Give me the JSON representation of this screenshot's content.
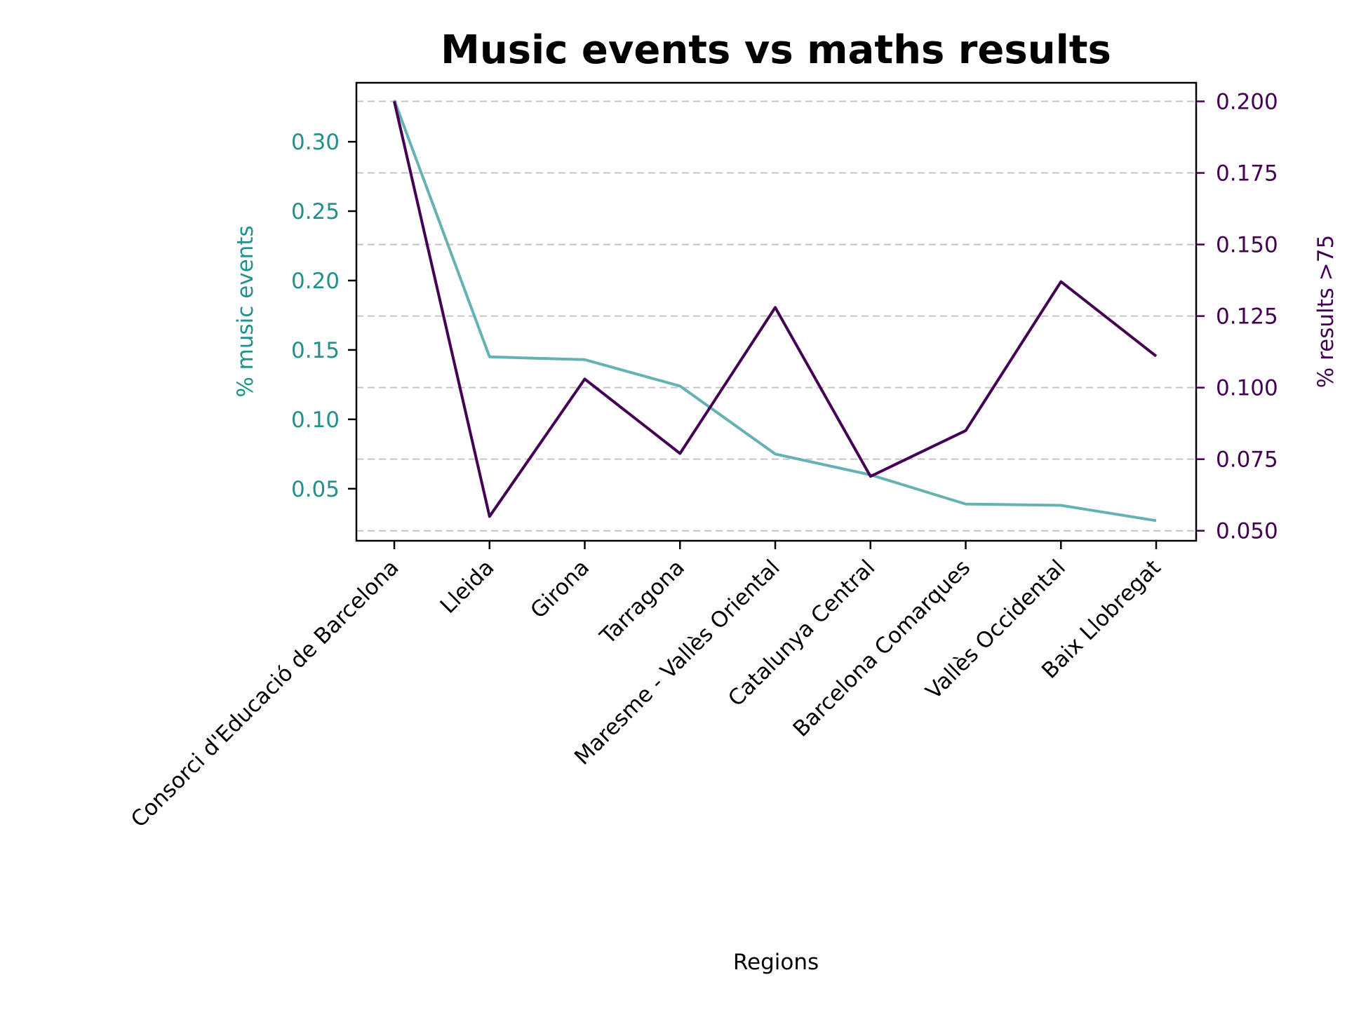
{
  "chart_data": {
    "type": "line",
    "title": "Music events vs maths results",
    "xlabel": "Regions",
    "ylabel_left": "%  music events",
    "ylabel_right": "% results >75",
    "categories": [
      "Consorci d'Educació de Barcelona",
      "Lleida",
      "Girona",
      "Tarragona",
      "Maresme - Vallès Oriental",
      "Catalunya Central",
      "Barcelona Comarques",
      "Vallès Occidental",
      "Baix Llobregat"
    ],
    "series": [
      {
        "axis": "left",
        "color": "#66b2b2",
        "values": [
          0.33,
          0.145,
          0.143,
          0.124,
          0.075,
          0.06,
          0.039,
          0.038,
          0.027
        ]
      },
      {
        "axis": "right",
        "color": "#440154",
        "values": [
          0.2,
          0.055,
          0.103,
          0.077,
          0.128,
          0.069,
          0.085,
          0.137,
          0.111
        ]
      }
    ],
    "ylim_left": [
      0.0125,
      0.3425
    ],
    "ylim_right": [
      0.0465,
      0.2065
    ],
    "yticks_left": [
      "0.05",
      "0.10",
      "0.15",
      "0.20",
      "0.25",
      "0.30"
    ],
    "yticks_right": [
      "0.050",
      "0.075",
      "0.100",
      "0.125",
      "0.150",
      "0.175",
      "0.200"
    ],
    "grid": "horizontal dashed (right axis ticks)",
    "left_axis_color": "#21918c",
    "right_axis_color": "#440154"
  }
}
